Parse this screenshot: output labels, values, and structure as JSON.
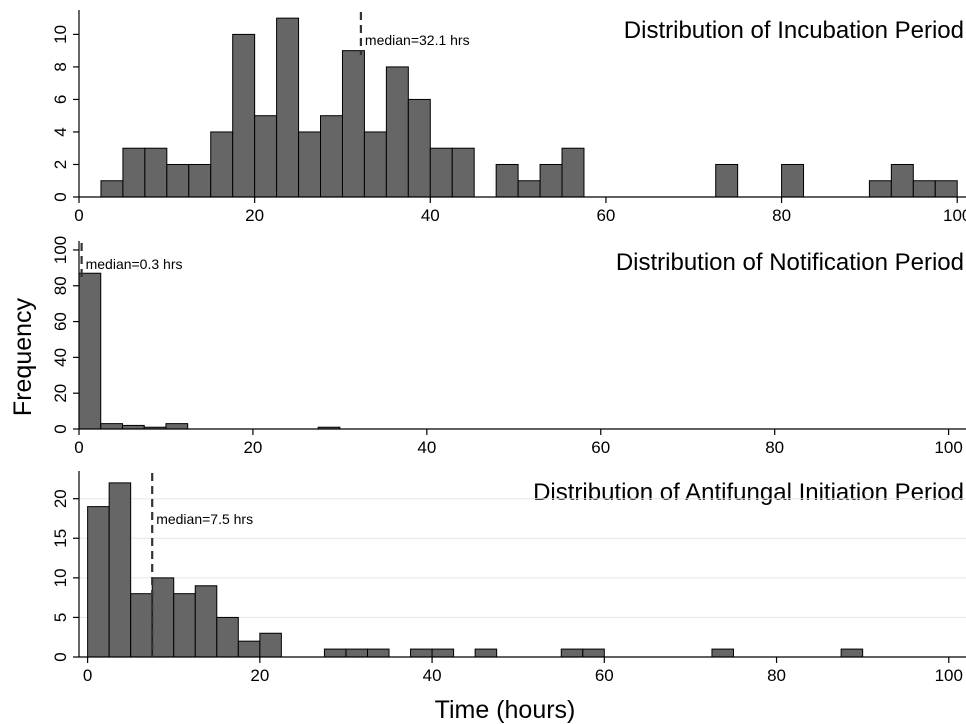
{
  "figure": {
    "ylabel": "Frequency",
    "xlabel": "Time (hours)"
  },
  "chart_data": [
    {
      "type": "bar",
      "title": "Distribution of Incubation Period",
      "bin_width": 2.5,
      "xlim": [
        0,
        101
      ],
      "ylim": [
        0,
        11.5
      ],
      "xticks": [
        0,
        20,
        40,
        60,
        80,
        100
      ],
      "yticks": [
        0,
        2,
        4,
        6,
        8,
        10
      ],
      "x": [
        3.75,
        6.25,
        8.75,
        11.25,
        13.75,
        16.25,
        18.75,
        21.25,
        23.75,
        26.25,
        28.75,
        31.25,
        33.75,
        36.25,
        38.75,
        41.25,
        43.75,
        48.75,
        51.25,
        53.75,
        56.25,
        73.75,
        81.25,
        91.25,
        93.75,
        96.25,
        98.75
      ],
      "values": [
        1,
        3,
        3,
        2,
        2,
        4,
        10,
        5,
        11,
        4,
        5,
        9,
        4,
        8,
        6,
        3,
        3,
        2,
        1,
        2,
        3,
        2,
        2,
        1,
        2,
        1,
        1
      ],
      "median": 32.1,
      "median_label": "median=32.1 hrs",
      "grid": false
    },
    {
      "type": "bar",
      "title": "Distribution of Notification Period",
      "bin_width": 2.5,
      "xlim": [
        0,
        102
      ],
      "ylim": [
        0,
        105
      ],
      "xticks": [
        0,
        20,
        40,
        60,
        80,
        100
      ],
      "yticks": [
        0,
        20,
        40,
        60,
        80,
        100
      ],
      "x": [
        1.25,
        3.75,
        6.25,
        8.75,
        11.25,
        28.75
      ],
      "values": [
        87,
        3,
        2,
        1,
        3,
        1
      ],
      "median": 0.3,
      "median_label": "median=0.3 hrs",
      "grid": false
    },
    {
      "type": "bar",
      "title": "Distribution of Antifungal Initiation Period",
      "bin_width": 2.5,
      "xlim": [
        -1,
        102
      ],
      "ylim": [
        0,
        23.5
      ],
      "xticks": [
        0,
        20,
        40,
        60,
        80,
        100
      ],
      "yticks": [
        0,
        5,
        10,
        15,
        20
      ],
      "x": [
        1.25,
        3.75,
        6.25,
        8.75,
        11.25,
        13.75,
        16.25,
        18.75,
        21.25,
        28.75,
        31.25,
        33.75,
        38.75,
        41.25,
        46.25,
        56.25,
        58.75,
        73.75,
        88.75
      ],
      "values": [
        19,
        22,
        8,
        10,
        8,
        9,
        5,
        2,
        3,
        1,
        1,
        1,
        1,
        1,
        1,
        1,
        1,
        1,
        1
      ],
      "median": 7.5,
      "median_label": "median=7.5 hrs",
      "grid": true
    }
  ],
  "colors": {
    "bar_fill": "#666666",
    "bar_stroke": "#000000",
    "axis": "#000000",
    "grid": "#e6e6e6",
    "median_line": "#333333"
  }
}
